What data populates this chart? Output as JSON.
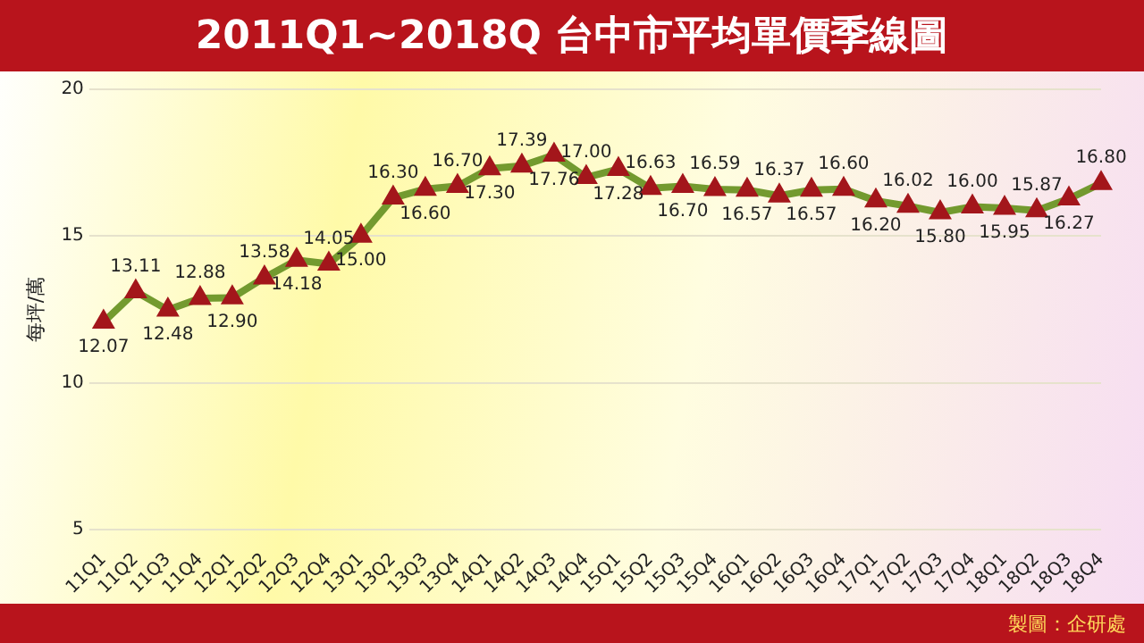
{
  "chart_data": {
    "type": "line",
    "title": "2011Q1~2018Q 台中市平均單價季線圖",
    "ylabel": "每坪/萬",
    "categories": [
      "11Q1",
      "11Q2",
      "11Q3",
      "11Q4",
      "12Q1",
      "12Q2",
      "12Q3",
      "12Q4",
      "13Q1",
      "13Q2",
      "13Q3",
      "13Q4",
      "14Q1",
      "14Q2",
      "14Q3",
      "14Q4",
      "15Q1",
      "15Q2",
      "15Q3",
      "15Q4",
      "16Q1",
      "16Q2",
      "16Q3",
      "16Q4",
      "17Q1",
      "17Q2",
      "17Q3",
      "17Q4",
      "18Q1",
      "18Q2",
      "18Q3",
      "18Q4"
    ],
    "series": [
      {
        "color": "#739a2f",
        "values": [
          12.07,
          13.11,
          12.48,
          12.88,
          12.9,
          13.58,
          14.18,
          14.05,
          15.0,
          16.3,
          16.6,
          16.7,
          17.3,
          17.39,
          17.76,
          17.0,
          17.28,
          16.63,
          16.7,
          16.59,
          16.57,
          16.37,
          16.57,
          16.6,
          16.2,
          16.02,
          15.8,
          16.0,
          15.95,
          15.87,
          16.27,
          16.8
        ]
      }
    ],
    "value_labels": [
      "12.07",
      "13.11",
      "12.48",
      "12.88",
      "12.90",
      "13.58",
      "14.18",
      "14.05",
      "15.00",
      "16.30",
      "16.60",
      "16.70",
      "17.30",
      "17.39",
      "17.76",
      "17.00",
      "17.28",
      "16.63",
      "16.70",
      "16.59",
      "16.57",
      "16.37",
      "16.57",
      "16.60",
      "16.20",
      "16.02",
      "15.80",
      "16.00",
      "15.95",
      "15.87",
      "16.27",
      "16.80"
    ],
    "ylim": [
      5,
      20
    ],
    "yticks": [
      5,
      10,
      15,
      20
    ],
    "grid": "y",
    "marker": "triangle",
    "legend": false,
    "annotations": [
      "製圖：企研處"
    ]
  }
}
